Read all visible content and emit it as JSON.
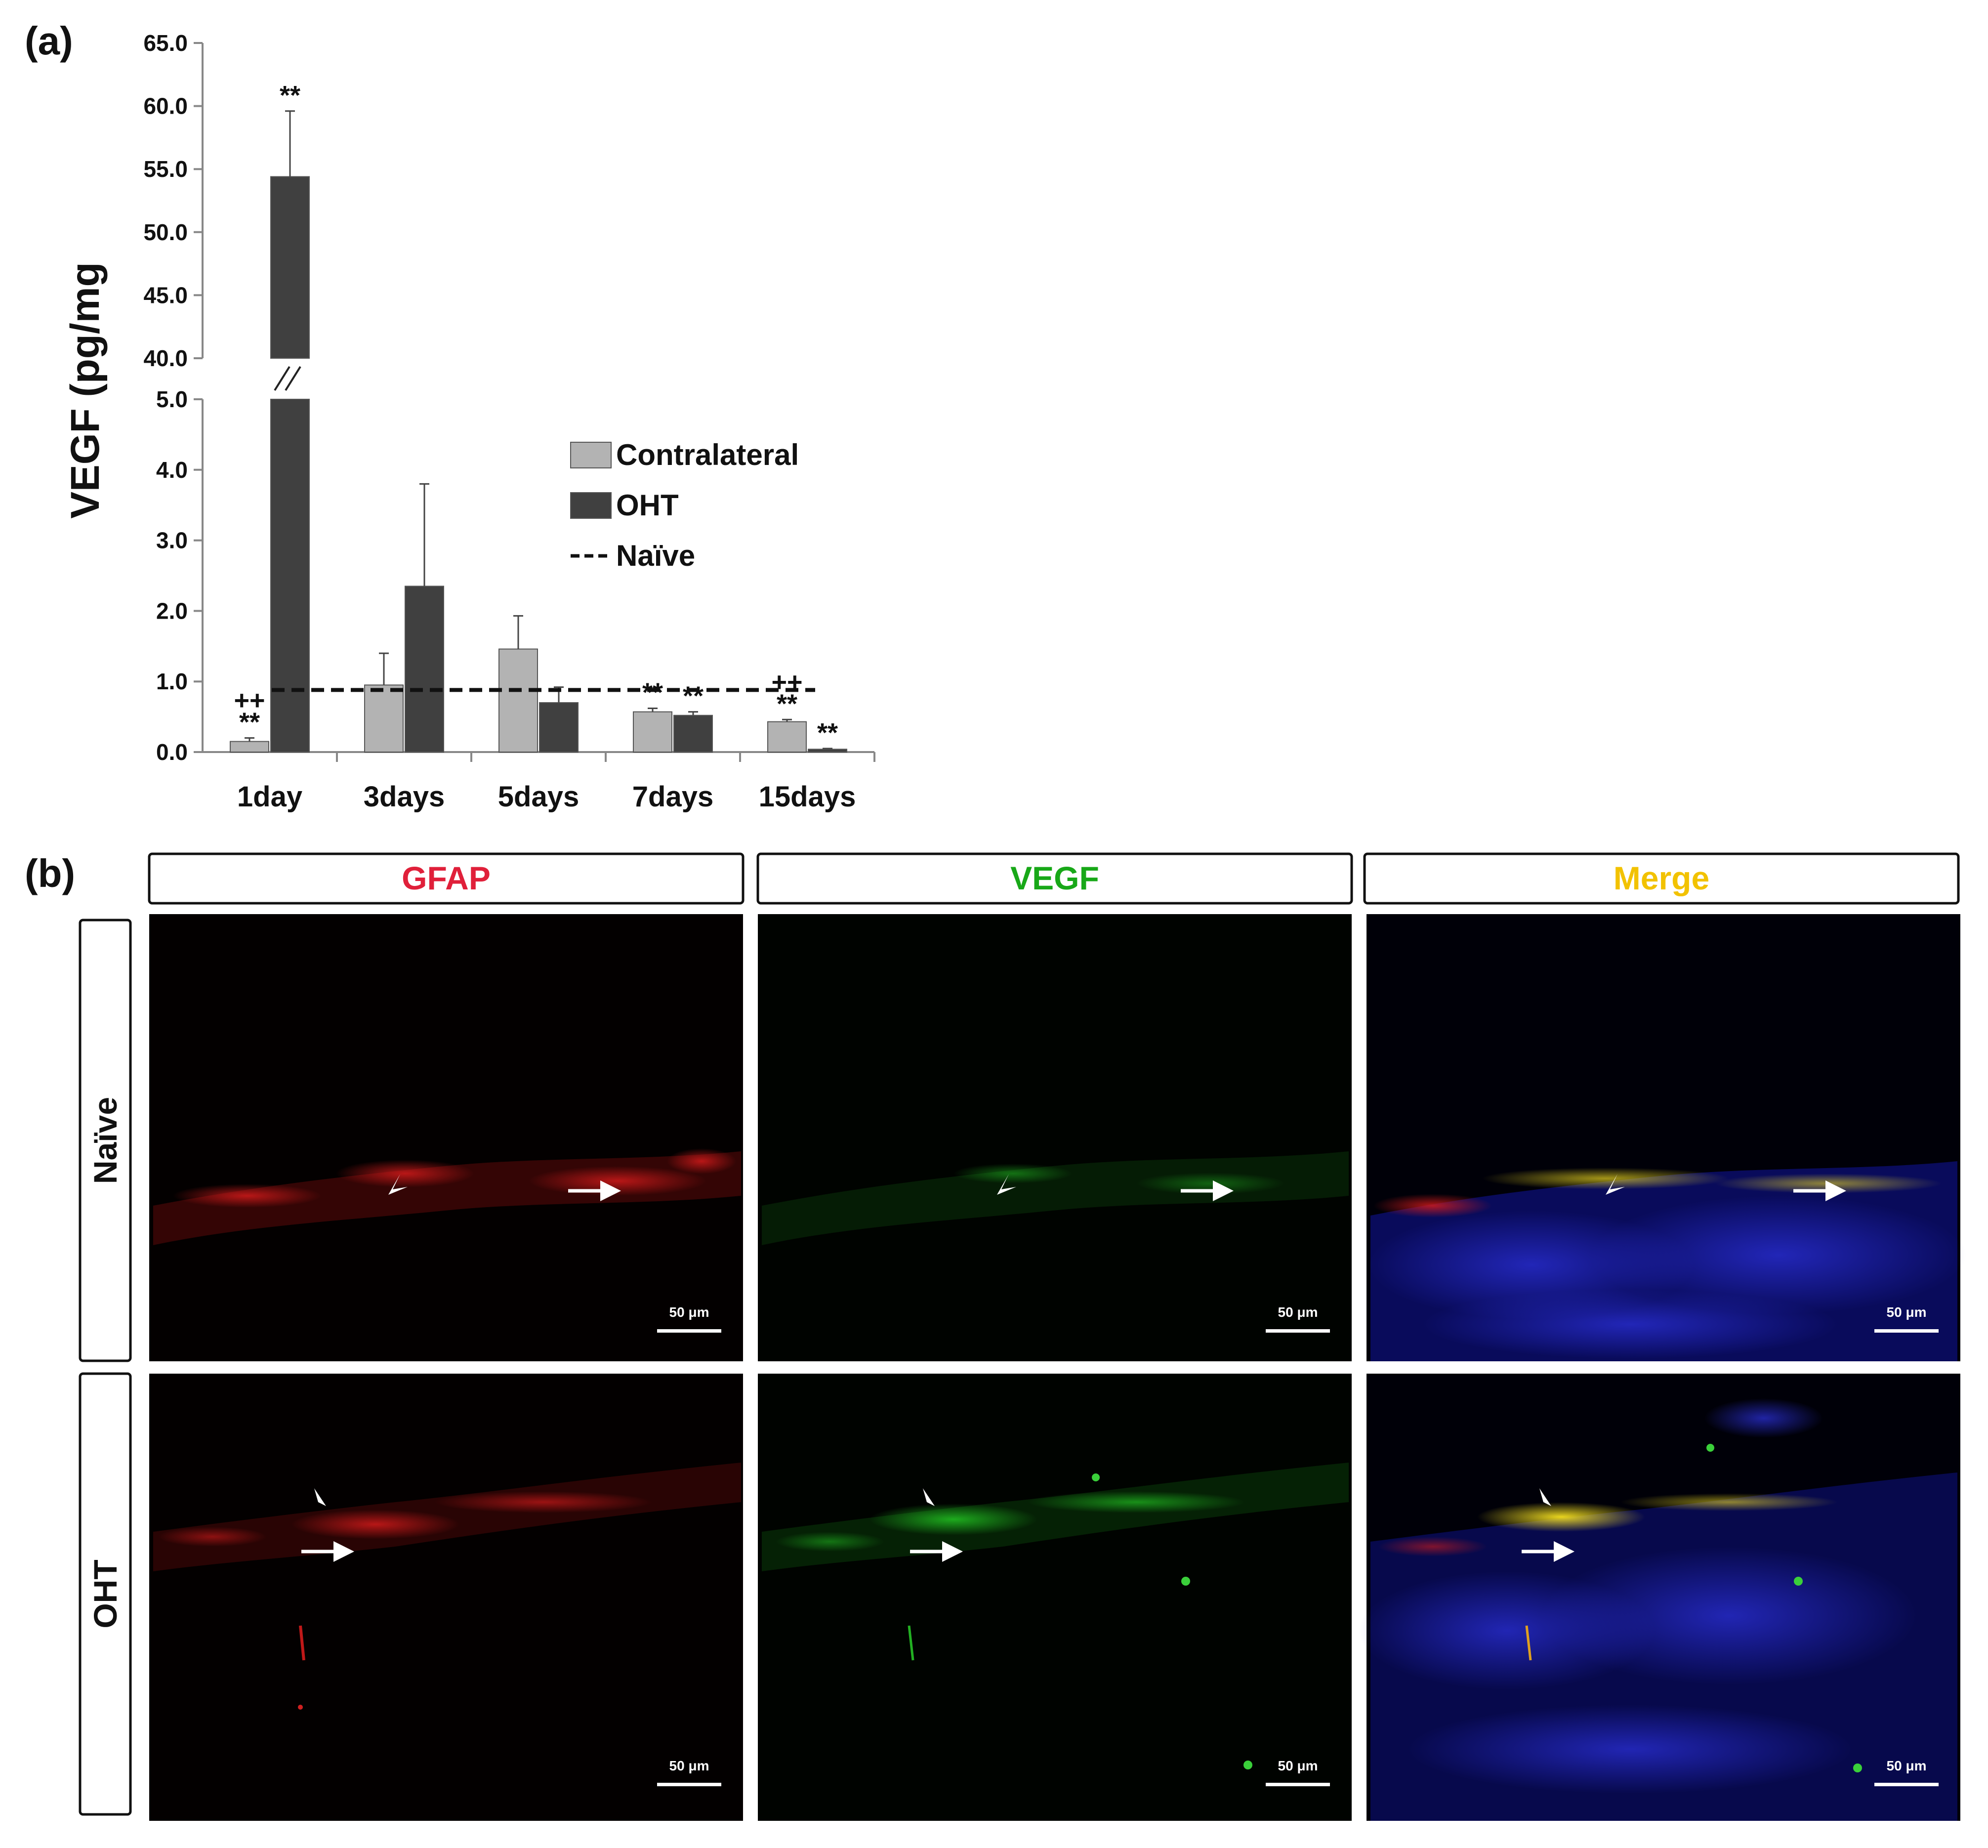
{
  "panel_a": {
    "label": "(a)"
  },
  "panel_b": {
    "label": "(b)",
    "columns": [
      {
        "label": "GFAP",
        "color": "#e0203a"
      },
      {
        "label": "VEGF",
        "color": "#18a818"
      },
      {
        "label": "Merge",
        "color": "#f2c200"
      }
    ],
    "rows": [
      {
        "label": "Naïve"
      },
      {
        "label": "OHT"
      }
    ],
    "scale_bar_label": "50 μm"
  },
  "chart_data": {
    "type": "bar",
    "categories": [
      "1day",
      "3days",
      "5days",
      "7days",
      "15days"
    ],
    "series": [
      {
        "name": "Contralateral",
        "color": "#b3b3b3",
        "values": [
          0.15,
          0.95,
          1.46,
          0.57,
          0.43
        ],
        "errors": [
          0.05,
          0.45,
          0.47,
          0.05,
          0.03
        ]
      },
      {
        "name": "OHT",
        "color": "#404040",
        "values": [
          54.4,
          2.35,
          0.7,
          0.52,
          0.04
        ],
        "errors": [
          5.2,
          1.45,
          0.22,
          0.05,
          0.01
        ]
      }
    ],
    "reference_line": {
      "name": "Naïve",
      "value": 0.88,
      "style": "dashed"
    },
    "ylabel": "VEGF (pg/mg",
    "y_axis_break": {
      "lower_range": [
        0,
        5
      ],
      "upper_range": [
        40,
        65
      ]
    },
    "yticks_lower": [
      "0.0",
      "1.0",
      "2.0",
      "3.0",
      "4.0",
      "5.0"
    ],
    "yticks_upper": [
      "40.0",
      "45.0",
      "50.0",
      "55.0",
      "60.0",
      "65.0"
    ],
    "legend_position": "center-right",
    "annotations": [
      {
        "category": "1day",
        "series": "Contralateral",
        "text": "**"
      },
      {
        "category": "1day",
        "series": "Contralateral",
        "text": "++"
      },
      {
        "category": "1day",
        "series": "OHT",
        "text": "**"
      },
      {
        "category": "7days",
        "series": "Contralateral",
        "text": "**"
      },
      {
        "category": "7days",
        "series": "OHT",
        "text": "**"
      },
      {
        "category": "15days",
        "series": "Contralateral",
        "text": "**"
      },
      {
        "category": "15days",
        "series": "Contralateral",
        "text": "++"
      },
      {
        "category": "15days",
        "series": "OHT",
        "text": "**"
      }
    ]
  }
}
